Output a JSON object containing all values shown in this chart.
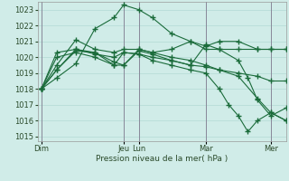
{
  "bg_color": "#d0ece8",
  "grid_color": "#b8ddd8",
  "line_color": "#1a6b3a",
  "vline_color": "#888899",
  "ylabel": "Pression niveau de la mer( hPa )",
  "ylim": [
    1015,
    1023.5
  ],
  "yticks": [
    1015,
    1016,
    1017,
    1018,
    1019,
    1020,
    1021,
    1022,
    1023
  ],
  "xlim": [
    0,
    13.0
  ],
  "day_labels": [
    "Dim",
    "Jeu",
    "Lun",
    "Mar",
    "Mer"
  ],
  "day_positions": [
    0.2,
    4.5,
    5.3,
    8.8,
    12.2
  ],
  "vline_positions": [
    0.2,
    4.5,
    5.3,
    8.8,
    12.2
  ],
  "label_fontsize": 6.0,
  "xlabel_fontsize": 6.5,
  "lines": [
    {
      "x": [
        0.2,
        1.0,
        2.0,
        3.0,
        4.0,
        4.5,
        5.3,
        6.0,
        7.0,
        8.0,
        8.8,
        9.5,
        10.5,
        11.5,
        12.2,
        13.0
      ],
      "y": [
        1018.0,
        1018.7,
        1019.6,
        1021.8,
        1022.5,
        1023.3,
        1023.0,
        1022.5,
        1021.5,
        1021.0,
        1020.5,
        1020.5,
        1020.5,
        1020.5,
        1020.5,
        1020.5
      ]
    },
    {
      "x": [
        0.2,
        1.0,
        2.0,
        3.0,
        4.0,
        4.5,
        5.3,
        6.0,
        7.0,
        8.0,
        8.8,
        9.5,
        10.5,
        11.5,
        12.2,
        13.0
      ],
      "y": [
        1018.0,
        1019.5,
        1021.1,
        1020.5,
        1020.3,
        1020.5,
        1020.5,
        1020.3,
        1020.5,
        1021.0,
        1020.7,
        1021.0,
        1021.0,
        1020.5,
        1020.5,
        1020.5
      ]
    },
    {
      "x": [
        0.2,
        1.0,
        2.0,
        3.0,
        4.0,
        4.5,
        5.3,
        6.0,
        7.0,
        8.0,
        8.8,
        9.5,
        10.5,
        11.5,
        12.2,
        13.0
      ],
      "y": [
        1018.0,
        1020.3,
        1020.5,
        1020.2,
        1020.0,
        1020.3,
        1020.2,
        1020.0,
        1019.8,
        1019.5,
        1019.4,
        1019.2,
        1019.0,
        1018.8,
        1018.5,
        1018.5
      ]
    },
    {
      "x": [
        0.2,
        1.0,
        2.0,
        3.0,
        4.0,
        4.5,
        5.3,
        6.0,
        7.0,
        8.0,
        8.8,
        9.5,
        10.5,
        11.5,
        12.2,
        13.0
      ],
      "y": [
        1018.0,
        1020.0,
        1020.3,
        1020.0,
        1019.5,
        1019.5,
        1020.5,
        1020.3,
        1020.0,
        1019.8,
        1019.5,
        1019.2,
        1018.8,
        1017.4,
        1016.5,
        1016.0
      ]
    },
    {
      "x": [
        0.2,
        1.0,
        2.0,
        3.0,
        4.0,
        4.5,
        5.3,
        6.0,
        7.0,
        8.0,
        8.8,
        9.5,
        10.5,
        11.0,
        11.5,
        12.2,
        13.0
      ],
      "y": [
        1018.0,
        1019.2,
        1020.5,
        1020.3,
        1019.7,
        1019.5,
        1020.4,
        1020.2,
        1019.8,
        1019.5,
        1020.8,
        1020.5,
        1019.8,
        1018.7,
        1017.3,
        1016.3,
        1016.8
      ]
    },
    {
      "x": [
        0.2,
        1.0,
        2.0,
        3.0,
        4.0,
        4.5,
        5.3,
        6.0,
        7.0,
        8.0,
        8.8,
        9.5,
        10.0,
        10.5,
        11.0,
        11.5,
        12.2,
        13.0
      ],
      "y": [
        1018.0,
        1019.2,
        1020.4,
        1020.3,
        1019.5,
        1020.3,
        1020.2,
        1019.8,
        1019.5,
        1019.2,
        1019.0,
        1018.0,
        1017.0,
        1016.3,
        1015.3,
        1016.0,
        1016.5,
        1016.0
      ]
    }
  ]
}
